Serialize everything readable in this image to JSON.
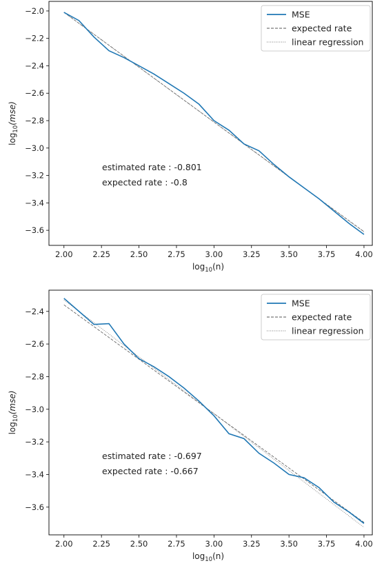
{
  "chart_data": [
    {
      "type": "line",
      "xlabel_base": "log",
      "xlabel_sub": "10",
      "xlabel_arg": "(n)",
      "ylabel_base": "log",
      "ylabel_sub": "10",
      "ylabel_arg": "(mse)",
      "xlim": [
        1.9,
        4.06
      ],
      "ylim": [
        -3.71,
        -1.93
      ],
      "xticks": [
        2.0,
        2.25,
        2.5,
        2.75,
        3.0,
        3.25,
        3.5,
        3.75,
        4.0
      ],
      "xtick_labels": [
        "2.00",
        "2.25",
        "2.50",
        "2.75",
        "3.00",
        "3.25",
        "3.50",
        "3.75",
        "4.00"
      ],
      "yticks": [
        -2.0,
        -2.2,
        -2.4,
        -2.6,
        -2.8,
        -3.0,
        -3.2,
        -3.4,
        -3.6
      ],
      "ytick_labels": [
        "−2.0",
        "−2.2",
        "−2.4",
        "−2.6",
        "−2.8",
        "−3.0",
        "−3.2",
        "−3.4",
        "−3.6"
      ],
      "grid": false,
      "legend_position": "top-right",
      "series": [
        {
          "name": "MSE",
          "style": "solid",
          "color": "#1f77b4",
          "x": [
            2.0,
            2.1,
            2.2,
            2.3,
            2.4,
            2.5,
            2.6,
            2.7,
            2.8,
            2.9,
            3.0,
            3.1,
            3.2,
            3.3,
            3.4,
            3.5,
            3.6,
            3.7,
            3.8,
            3.9,
            4.0
          ],
          "y": [
            -2.01,
            -2.07,
            -2.19,
            -2.29,
            -2.34,
            -2.4,
            -2.46,
            -2.53,
            -2.6,
            -2.68,
            -2.8,
            -2.87,
            -2.97,
            -3.02,
            -3.12,
            -3.21,
            -3.29,
            -3.37,
            -3.46,
            -3.55,
            -3.63
          ]
        },
        {
          "name": "expected rate",
          "style": "dashed",
          "color": "#555555",
          "x": [
            2.0,
            4.0
          ],
          "y": [
            -2.01,
            -3.61
          ]
        },
        {
          "name": "linear regression",
          "style": "dotted",
          "color": "#777777",
          "x": [
            2.0,
            4.0
          ],
          "y": [
            -2.01,
            -3.612
          ]
        }
      ],
      "annotations": [
        "estimated rate : -0.801",
        "expected rate : -0.8"
      ]
    },
    {
      "type": "line",
      "xlabel_base": "log",
      "xlabel_sub": "10",
      "xlabel_arg": "(n)",
      "ylabel_base": "log",
      "ylabel_sub": "10",
      "ylabel_arg": "(mse)",
      "xlim": [
        1.9,
        4.06
      ],
      "ylim": [
        -3.77,
        -2.27
      ],
      "xticks": [
        2.0,
        2.25,
        2.5,
        2.75,
        3.0,
        3.25,
        3.5,
        3.75,
        4.0
      ],
      "xtick_labels": [
        "2.00",
        "2.25",
        "2.50",
        "2.75",
        "3.00",
        "3.25",
        "3.50",
        "3.75",
        "4.00"
      ],
      "yticks": [
        -2.4,
        -2.6,
        -2.8,
        -3.0,
        -3.2,
        -3.4,
        -3.6
      ],
      "ytick_labels": [
        "−2.4",
        "−2.6",
        "−2.8",
        "−3.0",
        "−3.2",
        "−3.4",
        "−3.6"
      ],
      "grid": false,
      "legend_position": "top-right",
      "series": [
        {
          "name": "MSE",
          "style": "solid",
          "color": "#1f77b4",
          "x": [
            2.0,
            2.1,
            2.2,
            2.3,
            2.4,
            2.5,
            2.6,
            2.7,
            2.8,
            2.9,
            3.0,
            3.1,
            3.2,
            3.3,
            3.4,
            3.5,
            3.6,
            3.7,
            3.8,
            3.9,
            4.0
          ],
          "y": [
            -2.32,
            -2.4,
            -2.48,
            -2.475,
            -2.6,
            -2.69,
            -2.74,
            -2.8,
            -2.87,
            -2.95,
            -3.04,
            -3.15,
            -3.18,
            -3.27,
            -3.33,
            -3.4,
            -3.42,
            -3.48,
            -3.57,
            -3.63,
            -3.7
          ]
        },
        {
          "name": "expected rate",
          "style": "dashed",
          "color": "#555555",
          "x": [
            2.0,
            4.0
          ],
          "y": [
            -2.36,
            -3.694
          ]
        },
        {
          "name": "linear regression",
          "style": "dotted",
          "color": "#777777",
          "x": [
            2.0,
            4.0
          ],
          "y": [
            -2.33,
            -3.724
          ]
        }
      ],
      "annotations": [
        "estimated rate : -0.697",
        "expected rate : -0.667"
      ]
    }
  ]
}
